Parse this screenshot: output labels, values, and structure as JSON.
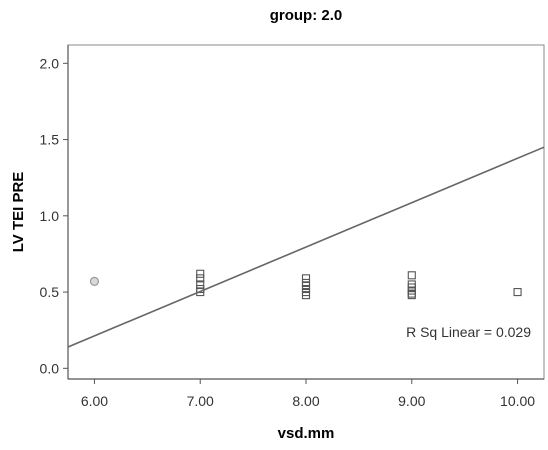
{
  "chart_data": {
    "type": "scatter",
    "title": "group: 2.0",
    "xlabel": "vsd.mm",
    "ylabel": "LV TEI PRE",
    "xlim": [
      5.75,
      10.25
    ],
    "ylim": [
      -0.07,
      2.12
    ],
    "x_ticks": [
      "6.00",
      "7.00",
      "8.00",
      "9.00",
      "10.00"
    ],
    "y_ticks": [
      "0.0",
      "0.5",
      "1.0",
      "1.5",
      "2.0"
    ],
    "grid": false,
    "points": [
      {
        "x": 6.0,
        "y": 0.57,
        "marker": "circle"
      },
      {
        "x": 7.0,
        "y": 0.62,
        "marker": "square"
      },
      {
        "x": 7.0,
        "y": 0.59,
        "marker": "square"
      },
      {
        "x": 7.0,
        "y": 0.55,
        "marker": "square"
      },
      {
        "x": 7.0,
        "y": 0.52,
        "marker": "square"
      },
      {
        "x": 7.0,
        "y": 0.5,
        "marker": "square"
      },
      {
        "x": 8.0,
        "y": 0.59,
        "marker": "square"
      },
      {
        "x": 8.0,
        "y": 0.56,
        "marker": "square"
      },
      {
        "x": 8.0,
        "y": 0.54,
        "marker": "square"
      },
      {
        "x": 8.0,
        "y": 0.52,
        "marker": "square"
      },
      {
        "x": 8.0,
        "y": 0.5,
        "marker": "square"
      },
      {
        "x": 8.0,
        "y": 0.48,
        "marker": "square"
      },
      {
        "x": 9.0,
        "y": 0.61,
        "marker": "square"
      },
      {
        "x": 9.0,
        "y": 0.55,
        "marker": "square"
      },
      {
        "x": 9.0,
        "y": 0.53,
        "marker": "square"
      },
      {
        "x": 9.0,
        "y": 0.51,
        "marker": "square"
      },
      {
        "x": 9.0,
        "y": 0.49,
        "marker": "square"
      },
      {
        "x": 9.0,
        "y": 0.48,
        "marker": "square"
      },
      {
        "x": 10.0,
        "y": 0.5,
        "marker": "square"
      }
    ],
    "fit_line": {
      "x": [
        5.75,
        10.25
      ],
      "y": [
        0.14,
        1.45
      ]
    },
    "annotation": "R Sq Linear = 0.029",
    "colors": {
      "axis": "#555555",
      "marker": "#555555",
      "circle_marker": "#999999",
      "line": "#666666"
    }
  }
}
